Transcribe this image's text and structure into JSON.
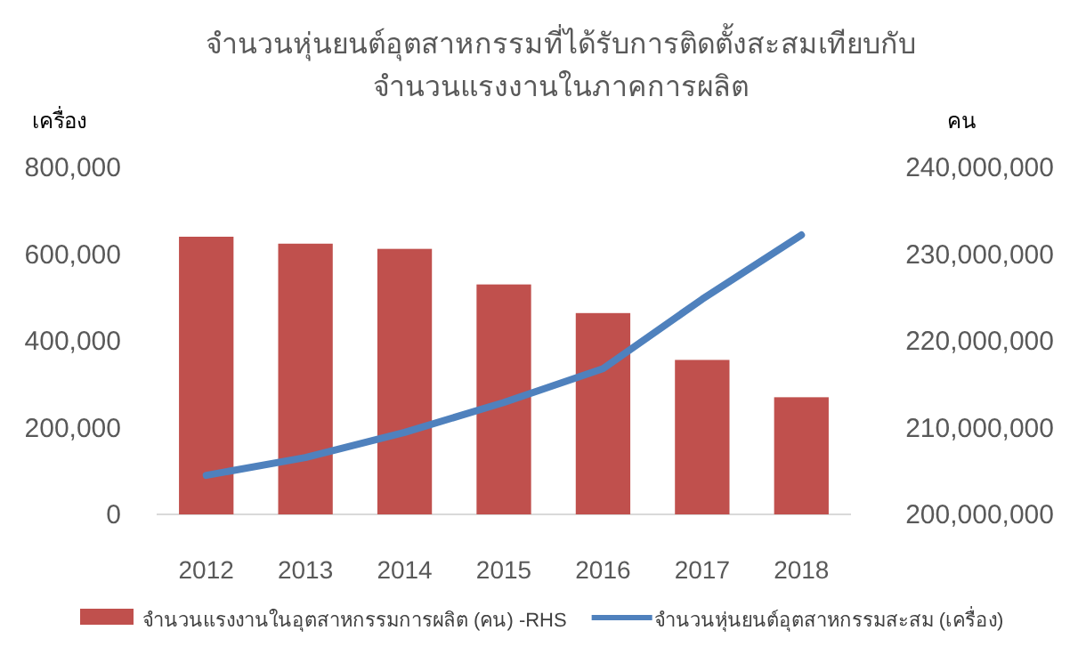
{
  "chart_data": {
    "type": "bar",
    "title": "จำนวนหุ่นยนต์อุตสาหกรรมที่ได้รับการติดตั้งสะสมเทียบกับจำนวนแรงงานในภาคการผลิต",
    "ylabel": "เครื่อง",
    "y2label": "คน",
    "categories": [
      "2012",
      "2013",
      "2014",
      "2015",
      "2016",
      "2017",
      "2018"
    ],
    "series": [
      {
        "name": "จำนวนแรงงานในอุตสาหกรรมการผลิต (คน) -RHS",
        "axis": "y2",
        "color": "#c0504d",
        "values": [
          232000000,
          231200000,
          230600000,
          226500000,
          223200000,
          217800000,
          213500000
        ]
      },
      {
        "name": "จำนวนหุ่นยนต์อุตสาหกรรมสะสม (เครื่อง)",
        "type": "line",
        "color": "#4f81bd",
        "values": [
          90000,
          131000,
          189000,
          258000,
          336000,
          496000,
          644000
        ]
      }
    ],
    "ylim": [
      0,
      800000
    ],
    "yticks": [
      {
        "value": 0,
        "label": "0"
      },
      {
        "value": 200000,
        "label": "200,000"
      },
      {
        "value": 400000,
        "label": "400,000"
      },
      {
        "value": 600000,
        "label": "600,000"
      },
      {
        "value": 800000,
        "label": "800,000"
      }
    ],
    "y2lim": [
      200000000,
      240000000
    ],
    "y2ticks": [
      {
        "value": 200000000,
        "label": "200,000,000"
      },
      {
        "value": 210000000,
        "label": "210,000,000"
      },
      {
        "value": 220000000,
        "label": "220,000,000"
      },
      {
        "value": 230000000,
        "label": "230,000,000"
      },
      {
        "value": 240000000,
        "label": "240,000,000"
      }
    ],
    "grid": false,
    "legend": "bottom"
  }
}
